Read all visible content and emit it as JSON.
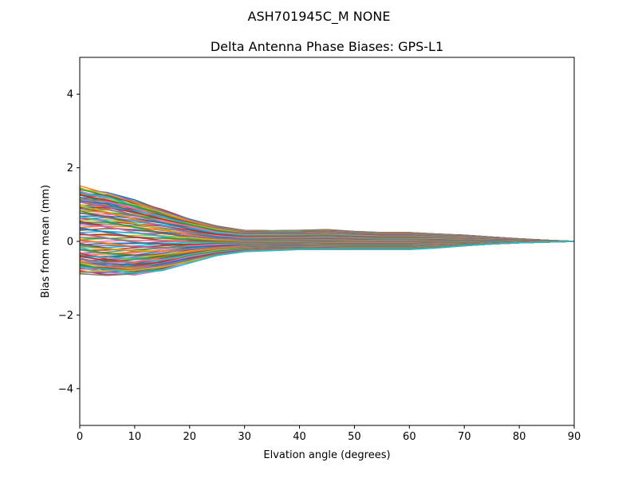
{
  "figure": {
    "suptitle": "ASH701945C_M    NONE"
  },
  "chart_data": {
    "type": "line",
    "title": "Delta Antenna Phase Biases: GPS-L1",
    "xlabel": "Elvation angle (degrees)",
    "ylabel": "Bias from mean (mm)",
    "xlim": [
      0,
      90
    ],
    "ylim": [
      -5,
      5
    ],
    "xticks": [
      0,
      10,
      20,
      30,
      40,
      50,
      60,
      70,
      80,
      90
    ],
    "yticks": [
      -4,
      -2,
      0,
      2,
      4
    ],
    "grid": false,
    "legend": "none",
    "x": [
      0,
      5,
      10,
      15,
      20,
      25,
      30,
      35,
      40,
      45,
      50,
      55,
      60,
      65,
      70,
      75,
      80,
      85,
      90
    ],
    "series_count": 120,
    "series_colors": [
      "#1f77b4",
      "#ff7f0e",
      "#2ca02c",
      "#d62728",
      "#9467bd",
      "#8c564b",
      "#e377c2",
      "#7f7f7f",
      "#bcbd22",
      "#17becf"
    ],
    "series_representative": [
      {
        "values": [
          1.4,
          1.25,
          1.05,
          0.82,
          0.58,
          0.4,
          0.3,
          0.29,
          0.3,
          0.32,
          0.27,
          0.24,
          0.24,
          0.2,
          0.17,
          0.12,
          0.07,
          0.03,
          0.0
        ]
      },
      {
        "values": [
          1.25,
          1.15,
          0.95,
          0.75,
          0.55,
          0.38,
          0.28,
          0.27,
          0.27,
          0.28,
          0.24,
          0.22,
          0.22,
          0.18,
          0.15,
          0.1,
          0.06,
          0.03,
          0.0
        ]
      },
      {
        "values": [
          0.95,
          0.85,
          0.7,
          0.55,
          0.4,
          0.27,
          0.2,
          0.2,
          0.2,
          0.22,
          0.18,
          0.16,
          0.16,
          0.13,
          0.11,
          0.08,
          0.05,
          0.02,
          0.0
        ]
      },
      {
        "values": [
          0.5,
          0.45,
          0.35,
          0.25,
          0.15,
          0.08,
          0.05,
          0.06,
          0.07,
          0.08,
          0.06,
          0.05,
          0.05,
          0.04,
          0.03,
          0.02,
          0.01,
          0.01,
          0.0
        ]
      },
      {
        "values": [
          0.0,
          -0.05,
          -0.08,
          -0.08,
          -0.06,
          -0.04,
          -0.03,
          -0.03,
          -0.03,
          -0.04,
          -0.04,
          -0.04,
          -0.04,
          -0.03,
          -0.03,
          -0.02,
          -0.01,
          0.0,
          0.0
        ]
      },
      {
        "values": [
          -0.4,
          -0.48,
          -0.45,
          -0.38,
          -0.26,
          -0.17,
          -0.12,
          -0.11,
          -0.11,
          -0.12,
          -0.12,
          -0.12,
          -0.12,
          -0.1,
          -0.08,
          -0.05,
          -0.03,
          -0.01,
          0.0
        ]
      },
      {
        "values": [
          -0.65,
          -0.75,
          -0.72,
          -0.6,
          -0.42,
          -0.28,
          -0.2,
          -0.18,
          -0.17,
          -0.18,
          -0.19,
          -0.19,
          -0.19,
          -0.15,
          -0.11,
          -0.07,
          -0.04,
          -0.02,
          0.0
        ]
      },
      {
        "values": [
          -0.8,
          -0.84,
          -0.87,
          -0.75,
          -0.55,
          -0.37,
          -0.28,
          -0.25,
          -0.22,
          -0.22,
          -0.22,
          -0.22,
          -0.22,
          -0.18,
          -0.12,
          -0.07,
          -0.04,
          -0.02,
          0.0
        ]
      }
    ]
  }
}
